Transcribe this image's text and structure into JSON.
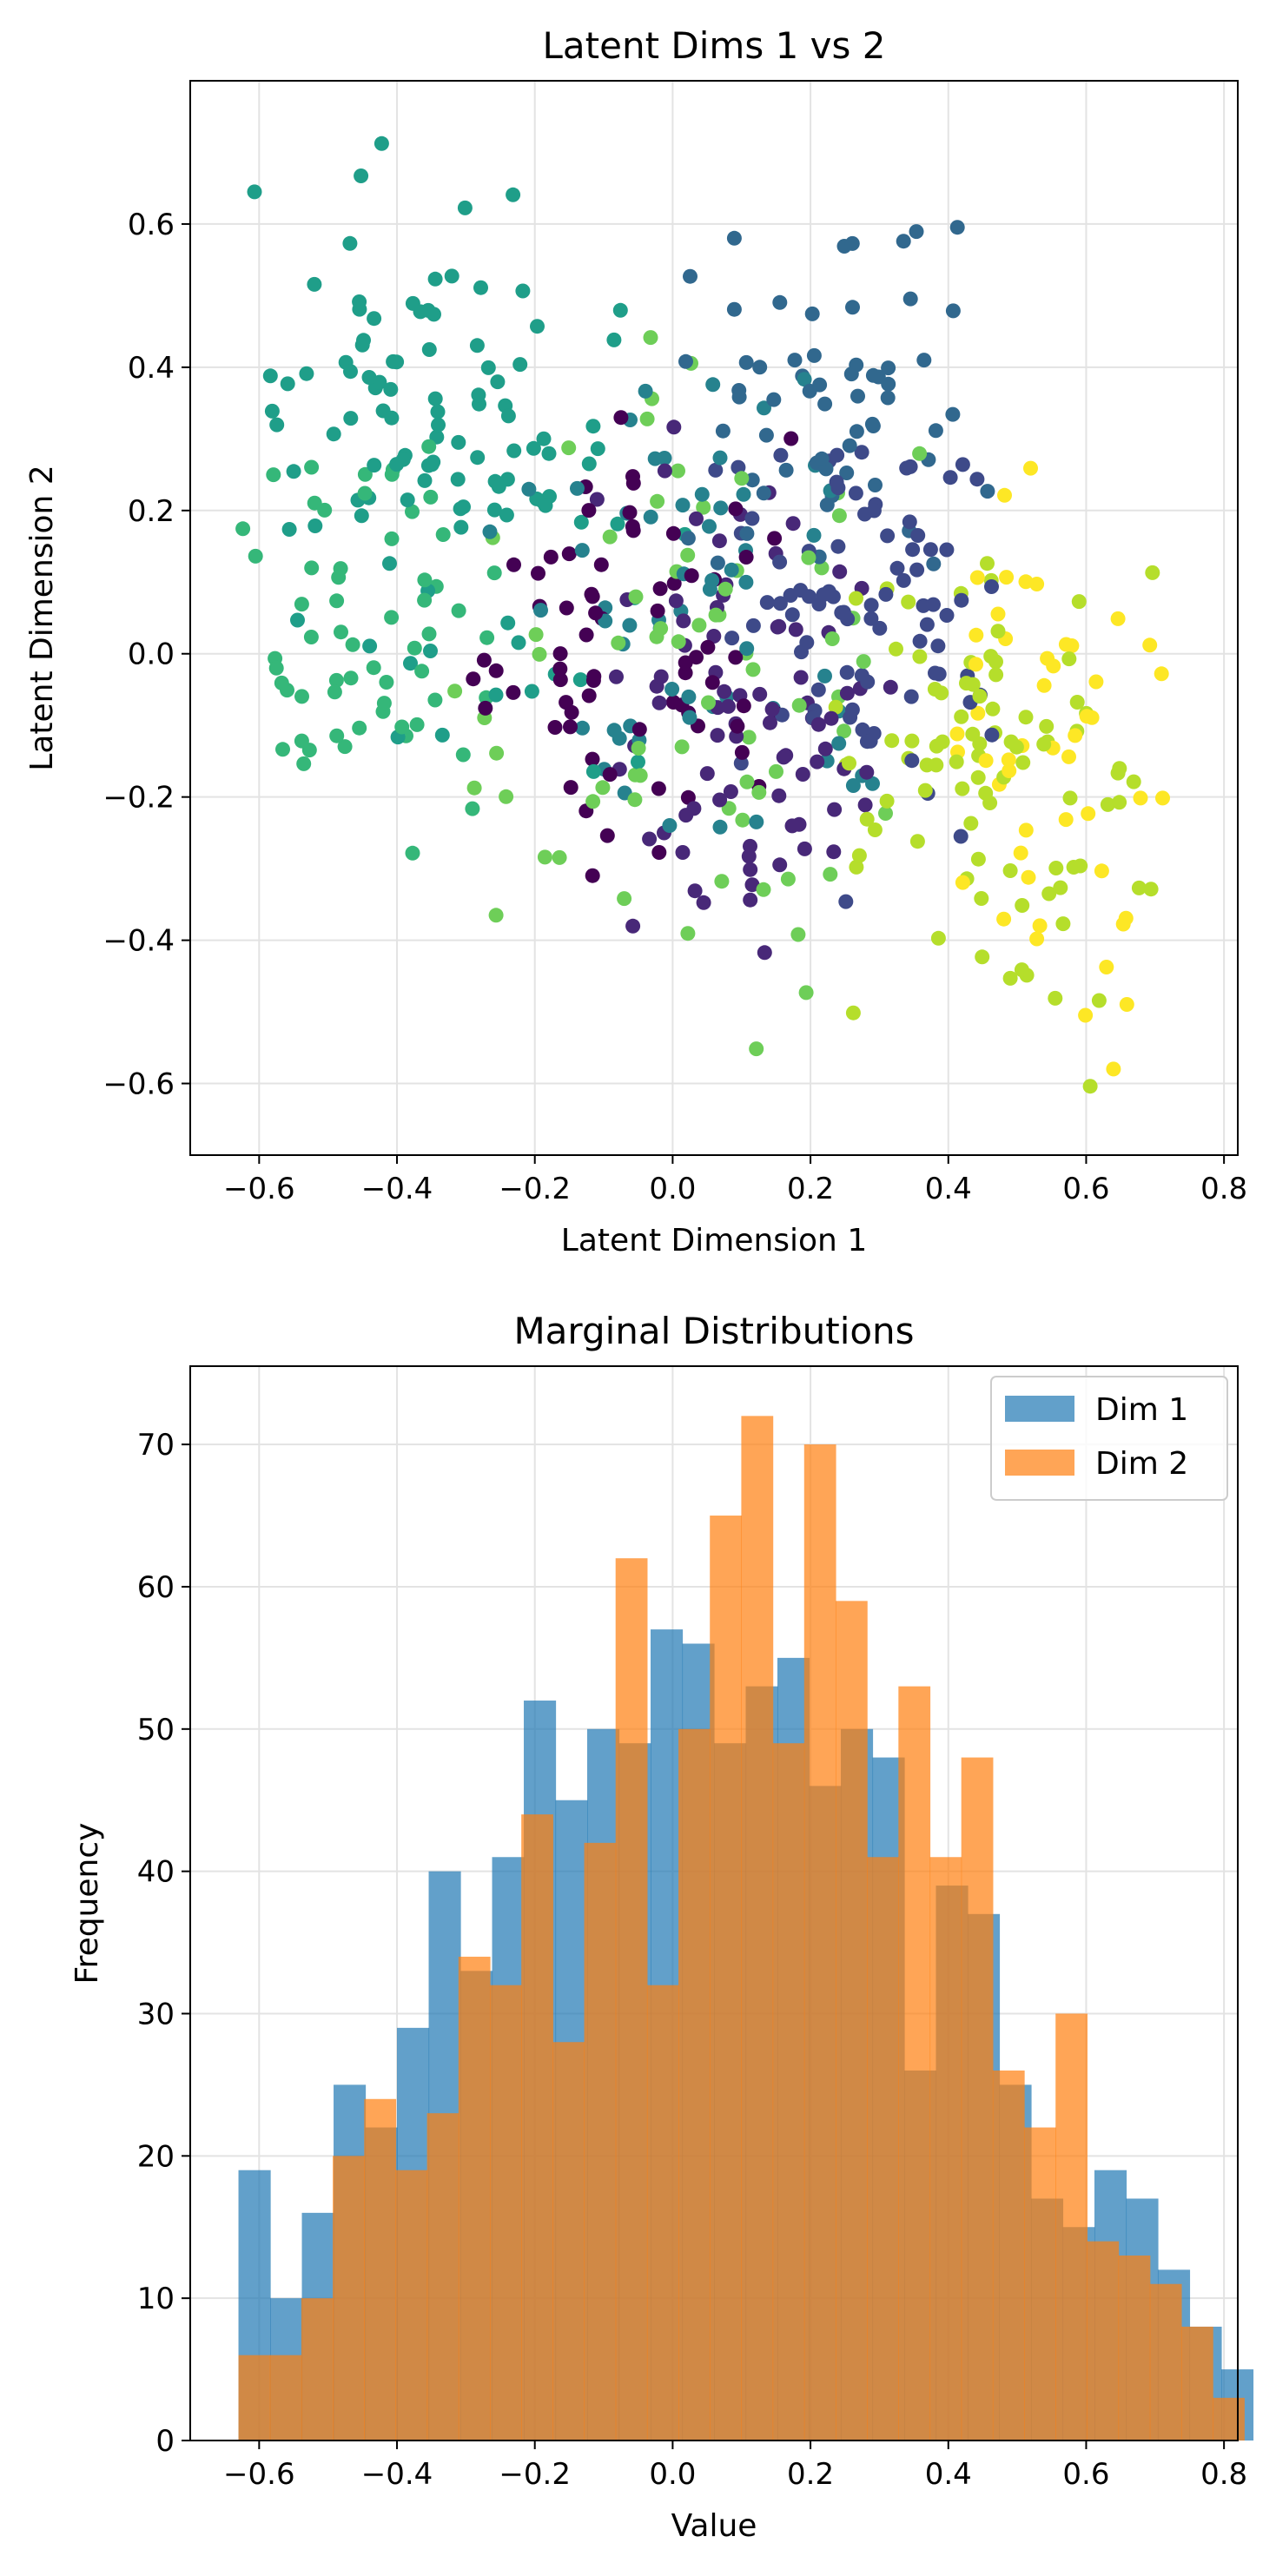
{
  "chart_data": [
    {
      "type": "scatter",
      "title": "Latent Dims 1 vs 2",
      "xlabel": "Latent Dimension 1",
      "ylabel": "Latent Dimension 2",
      "xlim": [
        -0.7,
        0.82
      ],
      "ylim": [
        -0.7,
        0.8
      ],
      "xticks": [
        -0.6,
        -0.4,
        -0.2,
        0.0,
        0.2,
        0.4,
        0.6,
        0.8
      ],
      "xtick_labels": [
        "−0.6",
        "−0.4",
        "−0.2",
        "0.0",
        "0.2",
        "0.4",
        "0.6",
        "0.8"
      ],
      "yticks": [
        -0.6,
        -0.4,
        -0.2,
        0.0,
        0.2,
        0.4,
        0.6
      ],
      "ytick_labels": [
        "−0.6",
        "−0.4",
        "−0.2",
        "0.0",
        "0.2",
        "0.4",
        "0.6"
      ],
      "grid": true,
      "colormap": "viridis",
      "colormap_stops": [
        "#440154",
        "#482878",
        "#3e4a89",
        "#31688e",
        "#26828e",
        "#1f9e89",
        "#35b779",
        "#6ece58",
        "#b5de2b",
        "#fde725"
      ],
      "clusters": [
        {
          "class": 0,
          "color": "#440154",
          "n": 70,
          "center": [
            -0.05,
            0.0
          ],
          "spread": [
            0.14,
            0.16
          ],
          "approx_extent": {
            "x": [
              -0.38,
              0.2
            ],
            "y": [
              -0.4,
              0.35
            ]
          }
        },
        {
          "class": 1,
          "color": "#482878",
          "n": 80,
          "center": [
            0.12,
            -0.05
          ],
          "spread": [
            0.13,
            0.18
          ],
          "approx_extent": {
            "x": [
              -0.15,
              0.35
            ],
            "y": [
              -0.48,
              0.32
            ]
          }
        },
        {
          "class": 2,
          "color": "#3e4a89",
          "n": 85,
          "center": [
            0.28,
            0.05
          ],
          "spread": [
            0.12,
            0.15
          ],
          "approx_extent": {
            "x": [
              0.05,
              0.5
            ],
            "y": [
              -0.35,
              0.3
            ]
          }
        },
        {
          "class": 3,
          "color": "#31688e",
          "n": 60,
          "center": [
            0.25,
            0.35
          ],
          "spread": [
            0.14,
            0.14
          ],
          "approx_extent": {
            "x": [
              0.0,
              0.5
            ],
            "y": [
              0.1,
              0.65
            ]
          }
        },
        {
          "class": 4,
          "color": "#26828e",
          "n": 60,
          "center": [
            0.0,
            0.05
          ],
          "spread": [
            0.16,
            0.2
          ],
          "approx_extent": {
            "x": [
              -0.3,
              0.3
            ],
            "y": [
              -0.4,
              0.45
            ]
          }
        },
        {
          "class": 5,
          "color": "#1f9e89",
          "n": 110,
          "center": [
            -0.35,
            0.3
          ],
          "spread": [
            0.14,
            0.2
          ],
          "approx_extent": {
            "x": [
              -0.63,
              0.05
            ],
            "y": [
              -0.2,
              0.73
            ]
          }
        },
        {
          "class": 6,
          "color": "#35b779",
          "n": 60,
          "center": [
            -0.45,
            0.0
          ],
          "spread": [
            0.1,
            0.15
          ],
          "approx_extent": {
            "x": [
              -0.63,
              -0.2
            ],
            "y": [
              -0.3,
              0.3
            ]
          }
        },
        {
          "class": 7,
          "color": "#6ece58",
          "n": 70,
          "center": [
            0.05,
            -0.05
          ],
          "spread": [
            0.2,
            0.2
          ],
          "approx_extent": {
            "x": [
              -0.4,
              0.4
            ],
            "y": [
              -0.56,
              0.45
            ]
          }
        },
        {
          "class": 8,
          "color": "#b5de2b",
          "n": 90,
          "center": [
            0.45,
            -0.15
          ],
          "spread": [
            0.15,
            0.2
          ],
          "approx_extent": {
            "x": [
              0.2,
              0.7
            ],
            "y": [
              -0.63,
              0.15
            ]
          }
        },
        {
          "class": 9,
          "color": "#fde725",
          "n": 50,
          "center": [
            0.55,
            -0.1
          ],
          "spread": [
            0.1,
            0.25
          ],
          "approx_extent": {
            "x": [
              0.3,
              0.75
            ],
            "y": [
              -0.6,
              0.28
            ]
          }
        }
      ]
    },
    {
      "type": "bar",
      "subtype": "histogram",
      "title": "Marginal Distributions",
      "xlabel": "Value",
      "ylabel": "Frequency",
      "xlim": [
        -0.7,
        0.82
      ],
      "ylim": [
        0,
        75.5
      ],
      "xticks": [
        -0.6,
        -0.4,
        -0.2,
        0.0,
        0.2,
        0.4,
        0.6,
        0.8
      ],
      "xtick_labels": [
        "−0.6",
        "−0.4",
        "−0.2",
        "0.0",
        "0.2",
        "0.4",
        "0.6",
        "0.8"
      ],
      "yticks": [
        0,
        10,
        20,
        30,
        40,
        50,
        60,
        70
      ],
      "ytick_labels": [
        "0",
        "10",
        "20",
        "30",
        "40",
        "50",
        "60",
        "70"
      ],
      "grid": true,
      "legend_position": "top-right",
      "series": [
        {
          "name": "Dim 1",
          "color": "#1f77b4",
          "alpha": 0.7,
          "bin_start": -0.63,
          "bin_width": 0.046,
          "counts": [
            19,
            10,
            16,
            25,
            22,
            29,
            40,
            33,
            41,
            52,
            45,
            50,
            49,
            57,
            56,
            49,
            53,
            55,
            46,
            50,
            48,
            26,
            39,
            37,
            25,
            17,
            15,
            19,
            17,
            12,
            8,
            5
          ]
        },
        {
          "name": "Dim 2",
          "color": "#ff7f0e",
          "alpha": 0.7,
          "bin_start": -0.63,
          "bin_width": 0.0456,
          "counts": [
            6,
            6,
            10,
            20,
            24,
            19,
            23,
            34,
            32,
            44,
            28,
            42,
            62,
            32,
            50,
            65,
            72,
            49,
            70,
            59,
            41,
            53,
            41,
            48,
            26,
            22,
            30,
            14,
            13,
            11,
            8,
            3
          ]
        }
      ]
    }
  ]
}
